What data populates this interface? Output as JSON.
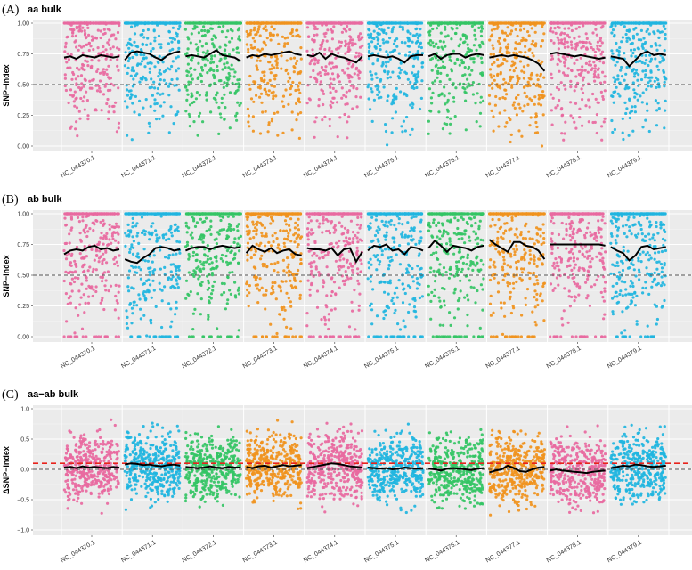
{
  "chromosomes": [
    "NC_044370.1",
    "NC_044371.1",
    "NC_044372.1",
    "NC_044373.1",
    "NC_044374.1",
    "NC_044375.1",
    "NC_044376.1",
    "NC_044377.1",
    "NC_044378.1",
    "NC_044379.1"
  ],
  "colors": [
    "#e8699f",
    "#1fb5e0",
    "#33c464",
    "#f0921d",
    "#e8699f",
    "#1fb5e0",
    "#33c464",
    "#f0921d",
    "#e8699f",
    "#1fb5e0"
  ],
  "chart_data": [
    {
      "type": "scatter",
      "panel_label": "(A)",
      "title": "aa bulk",
      "ylabel": "SNP−index",
      "ylim": [
        0,
        1
      ],
      "yticks": [
        "0.00",
        "0.25",
        "0.50",
        "0.75",
        "1.00"
      ],
      "threshold_lines": [
        {
          "value": 0.5,
          "color": "#555555",
          "style": "dashed"
        }
      ],
      "series": [
        {
          "chromosome": "NC_044370.1",
          "smoothed_mean": [
            0.72,
            0.73,
            0.71,
            0.74,
            0.73,
            0.72,
            0.74,
            0.73,
            0.72,
            0.73
          ]
        },
        {
          "chromosome": "NC_044371.1",
          "smoothed_mean": [
            0.7,
            0.76,
            0.77,
            0.76,
            0.75,
            0.72,
            0.7,
            0.74,
            0.76,
            0.77
          ]
        },
        {
          "chromosome": "NC_044372.1",
          "smoothed_mean": [
            0.73,
            0.74,
            0.73,
            0.72,
            0.75,
            0.78,
            0.74,
            0.73,
            0.72,
            0.69
          ]
        },
        {
          "chromosome": "NC_044373.1",
          "smoothed_mean": [
            0.72,
            0.74,
            0.73,
            0.75,
            0.74,
            0.75,
            0.76,
            0.77,
            0.75,
            0.74
          ]
        },
        {
          "chromosome": "NC_044374.1",
          "smoothed_mean": [
            0.74,
            0.73,
            0.76,
            0.71,
            0.75,
            0.73,
            0.72,
            0.7,
            0.68,
            0.73
          ]
        },
        {
          "chromosome": "NC_044375.1",
          "smoothed_mean": [
            0.73,
            0.74,
            0.73,
            0.72,
            0.73,
            0.71,
            0.68,
            0.73,
            0.74,
            0.74
          ]
        },
        {
          "chromosome": "NC_044376.1",
          "smoothed_mean": [
            0.73,
            0.75,
            0.71,
            0.74,
            0.75,
            0.75,
            0.72,
            0.74,
            0.75,
            0.74
          ]
        },
        {
          "chromosome": "NC_044377.1",
          "smoothed_mean": [
            0.72,
            0.73,
            0.74,
            0.73,
            0.74,
            0.73,
            0.72,
            0.7,
            0.67,
            0.61
          ]
        },
        {
          "chromosome": "NC_044378.1",
          "smoothed_mean": [
            0.75,
            0.76,
            0.75,
            0.74,
            0.73,
            0.74,
            0.73,
            0.72,
            0.71,
            0.72
          ]
        },
        {
          "chromosome": "NC_044379.1",
          "smoothed_mean": [
            0.73,
            0.72,
            0.71,
            0.65,
            0.7,
            0.75,
            0.77,
            0.74,
            0.75,
            0.74
          ]
        }
      ]
    },
    {
      "type": "scatter",
      "panel_label": "(B)",
      "title": "ab bulk",
      "ylabel": "SNP−index",
      "ylim": [
        0,
        1
      ],
      "yticks": [
        "0.00",
        "0.25",
        "0.50",
        "0.75",
        "1.00"
      ],
      "threshold_lines": [
        {
          "value": 0.5,
          "color": "#555555",
          "style": "dashed"
        }
      ],
      "series": [
        {
          "chromosome": "NC_044370.1",
          "smoothed_mean": [
            0.67,
            0.7,
            0.71,
            0.7,
            0.73,
            0.74,
            0.71,
            0.72,
            0.7,
            0.71
          ]
        },
        {
          "chromosome": "NC_044371.1",
          "smoothed_mean": [
            0.63,
            0.61,
            0.6,
            0.64,
            0.67,
            0.72,
            0.73,
            0.72,
            0.7,
            0.71
          ]
        },
        {
          "chromosome": "NC_044372.1",
          "smoothed_mean": [
            0.7,
            0.72,
            0.73,
            0.73,
            0.71,
            0.73,
            0.74,
            0.73,
            0.72,
            0.73
          ]
        },
        {
          "chromosome": "NC_044373.1",
          "smoothed_mean": [
            0.68,
            0.74,
            0.71,
            0.69,
            0.72,
            0.68,
            0.7,
            0.71,
            0.67,
            0.66
          ]
        },
        {
          "chromosome": "NC_044374.1",
          "smoothed_mean": [
            0.72,
            0.71,
            0.71,
            0.7,
            0.72,
            0.66,
            0.71,
            0.72,
            0.61,
            0.69
          ]
        },
        {
          "chromosome": "NC_044375.1",
          "smoothed_mean": [
            0.7,
            0.74,
            0.73,
            0.75,
            0.7,
            0.71,
            0.67,
            0.73,
            0.72,
            0.7
          ]
        },
        {
          "chromosome": "NC_044376.1",
          "smoothed_mean": [
            0.72,
            0.78,
            0.74,
            0.69,
            0.74,
            0.73,
            0.72,
            0.7,
            0.73,
            0.74
          ]
        },
        {
          "chromosome": "NC_044377.1",
          "smoothed_mean": [
            0.79,
            0.75,
            0.72,
            0.69,
            0.77,
            0.77,
            0.74,
            0.73,
            0.7,
            0.63
          ]
        },
        {
          "chromosome": "NC_044378.1",
          "smoothed_mean": [
            0.75,
            0.75,
            0.75,
            0.75,
            0.75,
            0.75,
            0.75,
            0.75,
            0.75,
            0.74
          ]
        },
        {
          "chromosome": "NC_044379.1",
          "smoothed_mean": [
            0.73,
            0.7,
            0.68,
            0.62,
            0.66,
            0.73,
            0.74,
            0.71,
            0.72,
            0.73
          ]
        }
      ]
    },
    {
      "type": "scatter",
      "panel_label": "(C)",
      "title": "aa−ab bulk",
      "ylabel": "ΔSNP−index",
      "ylim": [
        -1,
        1
      ],
      "yticks": [
        "−1.0",
        "−0.5",
        "0.0",
        "0.5",
        "1.0"
      ],
      "threshold_lines": [
        {
          "value": 0.0,
          "color": "#555555",
          "style": "dashed"
        },
        {
          "value": 0.1,
          "color": "#e8231c",
          "style": "dashed"
        }
      ],
      "series": [
        {
          "chromosome": "NC_044370.1",
          "smoothed_mean": [
            0.03,
            0.04,
            0.02,
            0.05,
            0.03,
            0.04,
            0.03,
            0.02,
            0.04,
            0.03
          ]
        },
        {
          "chromosome": "NC_044371.1",
          "smoothed_mean": [
            0.08,
            0.1,
            0.09,
            0.07,
            0.08,
            0.06,
            0.05,
            0.07,
            0.08,
            0.06
          ]
        },
        {
          "chromosome": "NC_044372.1",
          "smoothed_mean": [
            0.04,
            0.03,
            0.02,
            0.03,
            0.05,
            0.03,
            0.02,
            0.04,
            0.03,
            0.03
          ]
        },
        {
          "chromosome": "NC_044373.1",
          "smoothed_mean": [
            0.04,
            0.02,
            0.05,
            0.06,
            0.03,
            0.05,
            0.07,
            0.05,
            0.06,
            0.07
          ]
        },
        {
          "chromosome": "NC_044374.1",
          "smoothed_mean": [
            0.02,
            0.04,
            0.06,
            0.08,
            0.1,
            0.09,
            0.07,
            0.05,
            0.04,
            0.03
          ]
        },
        {
          "chromosome": "NC_044375.1",
          "smoothed_mean": [
            0.03,
            0.02,
            0.01,
            0.02,
            0.0,
            0.01,
            0.03,
            0.02,
            0.01,
            0.02
          ]
        },
        {
          "chromosome": "NC_044376.1",
          "smoothed_mean": [
            0.01,
            0.0,
            -0.02,
            0.01,
            0.02,
            0.01,
            0.0,
            -0.01,
            0.01,
            0.02
          ]
        },
        {
          "chromosome": "NC_044377.1",
          "smoothed_mean": [
            -0.05,
            -0.02,
            0.0,
            0.06,
            0.02,
            -0.03,
            -0.04,
            0.0,
            0.03,
            0.04
          ]
        },
        {
          "chromosome": "NC_044378.1",
          "smoothed_mean": [
            -0.02,
            0.0,
            -0.02,
            -0.03,
            -0.04,
            -0.05,
            -0.06,
            -0.04,
            -0.03,
            -0.02
          ]
        },
        {
          "chromosome": "NC_044379.1",
          "smoothed_mean": [
            0.02,
            0.04,
            0.06,
            0.05,
            0.08,
            0.07,
            0.05,
            0.04,
            0.05,
            0.06
          ]
        }
      ]
    }
  ]
}
